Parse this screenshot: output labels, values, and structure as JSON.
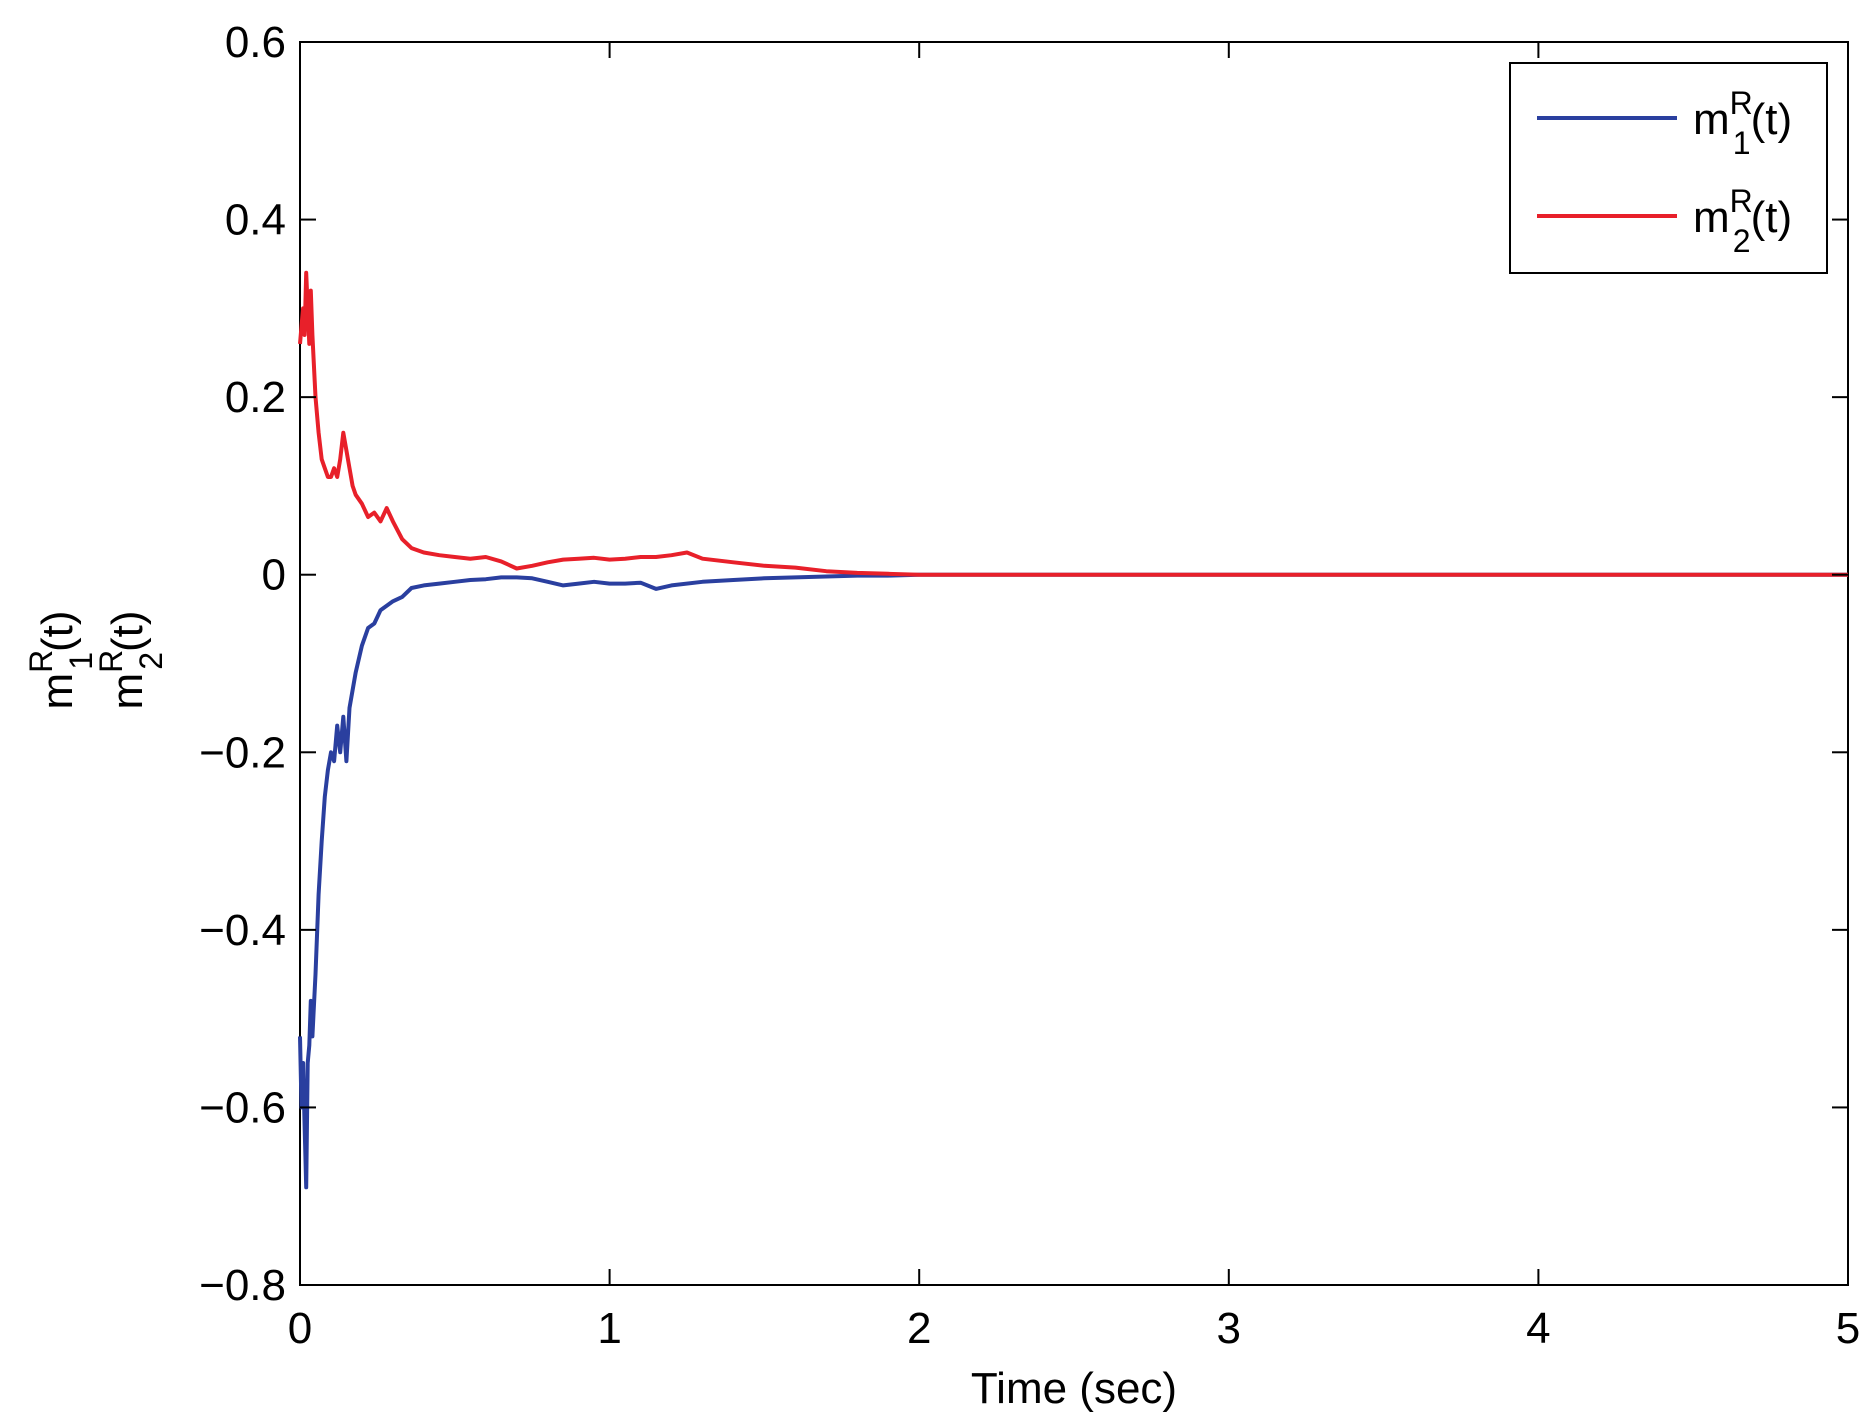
{
  "chart_data": {
    "type": "line",
    "xlabel": "Time (sec)",
    "ylabel": {
      "line1": {
        "base": "m",
        "sup": "R",
        "sub": "1",
        "tail": "(t)"
      },
      "line2": {
        "base": "m",
        "sup": "R",
        "sub": "2",
        "tail": "(t)"
      }
    },
    "xlim": [
      0,
      5
    ],
    "ylim": [
      -0.8,
      0.6
    ],
    "xticks": [
      0,
      1,
      2,
      3,
      4,
      5
    ],
    "xtick_labels": [
      "0",
      "1",
      "2",
      "3",
      "4",
      "5"
    ],
    "yticks": [
      -0.8,
      -0.6,
      -0.4,
      -0.2,
      0,
      0.2,
      0.4,
      0.6
    ],
    "ytick_labels": [
      "−0.8",
      "−0.6",
      "−0.4",
      "−0.2",
      "0",
      "0.2",
      "0.4",
      "0.6"
    ],
    "grid": false,
    "legend_position": "top-right",
    "series": [
      {
        "legend": {
          "base": "m",
          "sup": "R",
          "sub": "1",
          "tail": "(t)"
        },
        "color": "#2a3f9f",
        "x": [
          0,
          0.005,
          0.01,
          0.015,
          0.02,
          0.025,
          0.03,
          0.035,
          0.04,
          0.05,
          0.06,
          0.07,
          0.08,
          0.09,
          0.1,
          0.11,
          0.12,
          0.13,
          0.14,
          0.15,
          0.16,
          0.17,
          0.18,
          0.2,
          0.22,
          0.24,
          0.26,
          0.28,
          0.3,
          0.33,
          0.36,
          0.4,
          0.45,
          0.5,
          0.55,
          0.6,
          0.65,
          0.7,
          0.75,
          0.8,
          0.85,
          0.9,
          0.95,
          1.0,
          1.05,
          1.1,
          1.15,
          1.2,
          1.3,
          1.4,
          1.5,
          1.6,
          1.7,
          1.8,
          1.9,
          2.0,
          2.5,
          3.0,
          3.5,
          4.0,
          4.5,
          5.0
        ],
        "y": [
          -0.52,
          -0.6,
          -0.55,
          -0.62,
          -0.69,
          -0.55,
          -0.53,
          -0.48,
          -0.52,
          -0.45,
          -0.36,
          -0.3,
          -0.25,
          -0.22,
          -0.2,
          -0.21,
          -0.17,
          -0.2,
          -0.16,
          -0.21,
          -0.15,
          -0.13,
          -0.11,
          -0.08,
          -0.06,
          -0.055,
          -0.04,
          -0.035,
          -0.03,
          -0.025,
          -0.015,
          -0.012,
          -0.01,
          -0.008,
          -0.006,
          -0.005,
          -0.003,
          -0.003,
          -0.004,
          -0.008,
          -0.012,
          -0.01,
          -0.008,
          -0.01,
          -0.01,
          -0.009,
          -0.016,
          -0.012,
          -0.008,
          -0.006,
          -0.004,
          -0.003,
          -0.002,
          -0.001,
          -0.001,
          0,
          0,
          0,
          0,
          0,
          0,
          0
        ]
      },
      {
        "legend": {
          "base": "m",
          "sup": "R",
          "sub": "2",
          "tail": "(t)"
        },
        "color": "#e8202a",
        "x": [
          0,
          0.005,
          0.01,
          0.015,
          0.02,
          0.025,
          0.03,
          0.035,
          0.04,
          0.05,
          0.06,
          0.07,
          0.08,
          0.09,
          0.1,
          0.11,
          0.12,
          0.13,
          0.14,
          0.15,
          0.16,
          0.17,
          0.18,
          0.2,
          0.22,
          0.24,
          0.26,
          0.28,
          0.3,
          0.33,
          0.36,
          0.4,
          0.45,
          0.5,
          0.55,
          0.6,
          0.65,
          0.7,
          0.75,
          0.8,
          0.85,
          0.9,
          0.95,
          1.0,
          1.05,
          1.1,
          1.15,
          1.2,
          1.25,
          1.3,
          1.4,
          1.5,
          1.6,
          1.7,
          1.8,
          1.9,
          2.0,
          2.5,
          3.0,
          3.5,
          4.0,
          4.5,
          5.0
        ],
        "y": [
          0.26,
          0.28,
          0.3,
          0.27,
          0.34,
          0.3,
          0.26,
          0.32,
          0.27,
          0.2,
          0.16,
          0.13,
          0.12,
          0.11,
          0.11,
          0.12,
          0.11,
          0.13,
          0.16,
          0.14,
          0.12,
          0.1,
          0.09,
          0.08,
          0.065,
          0.07,
          0.06,
          0.075,
          0.06,
          0.04,
          0.03,
          0.025,
          0.022,
          0.02,
          0.018,
          0.02,
          0.015,
          0.007,
          0.01,
          0.014,
          0.017,
          0.018,
          0.019,
          0.017,
          0.018,
          0.02,
          0.02,
          0.022,
          0.025,
          0.018,
          0.014,
          0.01,
          0.008,
          0.004,
          0.002,
          0.001,
          0,
          0,
          0,
          0,
          0,
          0,
          0
        ]
      }
    ]
  }
}
